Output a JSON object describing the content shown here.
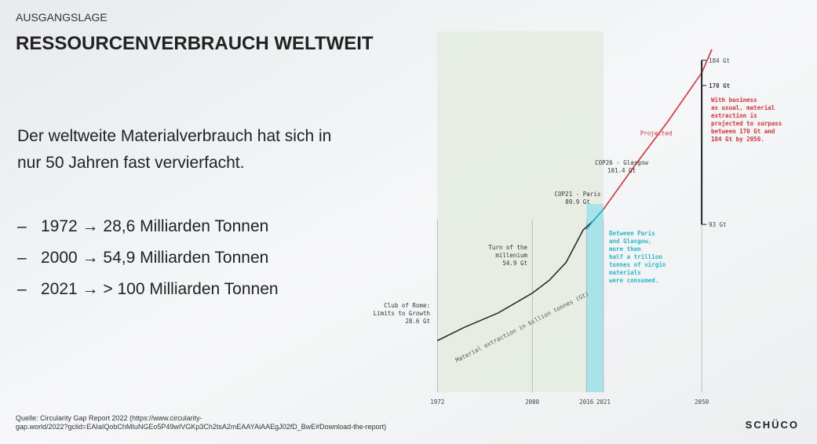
{
  "header": {
    "kicker": "AUSGANGSLAGE",
    "title": "RESSOURCENVERBRAUCH WELTWEIT"
  },
  "body": {
    "lead": [
      "Der weltweite Materialverbrauch hat sich in",
      "nur 50 Jahren  fast vervierfacht."
    ],
    "bullet_marker": "–",
    "bullets": [
      "1972 → 28,6 Milliarden Tonnen",
      "2000 → 54,9 Milliarden Tonnen",
      "2021 → > 100 Milliarden Tonnen"
    ]
  },
  "chart_data": {
    "type": "line",
    "y_label": "Material extraction in billion tonnes (Gt)",
    "xlim": [
      1968,
      2056
    ],
    "ylim": [
      0,
      200
    ],
    "xticks": [
      1972,
      2000,
      2016,
      2021,
      2050
    ],
    "series": [
      {
        "color": "#2b2b2b",
        "x": [
          1972,
          1980,
          1990,
          2000,
          2005,
          2010,
          2015,
          2018,
          2021
        ],
        "values": [
          28.6,
          36,
          44,
          54.9,
          62,
          72,
          89.9,
          95,
          101.4
        ]
      },
      {
        "color": "#29b6d1",
        "x": [
          2016,
          2018,
          2021
        ],
        "values": [
          90,
          95,
          101.4
        ]
      },
      {
        "name": "Projected",
        "color": "#e0303a",
        "x": [
          2021,
          2030,
          2040,
          2050,
          2053
        ],
        "values": [
          101.4,
          125,
          150,
          177,
          190
        ]
      }
    ],
    "range_2050": {
      "x": 2050,
      "values": [
        184,
        170,
        93
      ],
      "value_labels": [
        "184 Gt",
        "170 Gt",
        "93 Gt"
      ]
    },
    "annotations": {
      "club_of_rome": [
        "Club of Rome:",
        "Limits to Growth",
        "28.6 Gt"
      ],
      "millennium": [
        "Turn of the",
        "millenium",
        "54.9 Gt"
      ],
      "cop21": [
        "COP21 - Paris",
        "89.9 Gt"
      ],
      "cop26": [
        "COP26 - Glasgow",
        "101.4 Gt"
      ],
      "between": [
        "Between Paris",
        "and Glasgow,",
        "more than",
        "half a trillion",
        "tonnes of virgin",
        "materials",
        "were consumed."
      ],
      "business": [
        "With business",
        "as usual, material",
        "extraction is",
        "projected to surpass",
        "between 170 Gt and",
        "184 Gt by 2050."
      ]
    }
  },
  "footer": {
    "source": [
      "Quelle: Circularity Gap Report 2022 (https://www.circularity-",
      "gap.world/2022?gclid=EAIaIQobChMIuNGEo5P49wIVGKp3Ch2tsA2mEAAYAiAAEgJ02fD_BwE#Download-the-report)"
    ],
    "logo": "SCHÜCO"
  }
}
